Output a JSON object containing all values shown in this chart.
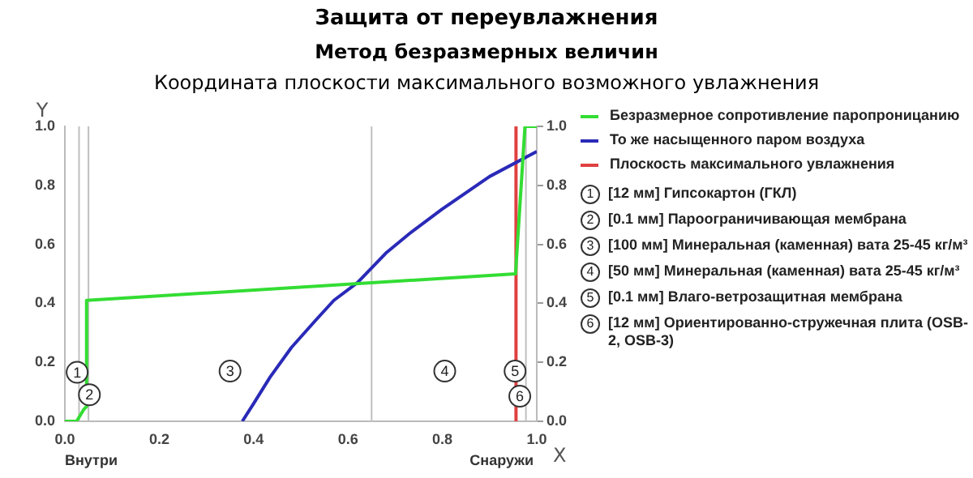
{
  "chart_data": {
    "type": "line",
    "title": "Защита от переувлажнения",
    "subtitle": "Метод безразмерных величин",
    "xlabel": "X",
    "ylabel": "Y",
    "xlim": [
      0,
      1
    ],
    "xticks": [
      {
        "value": 0,
        "label": "0.0"
      },
      0.2,
      0.4,
      0.6,
      0.8,
      {
        "value": 1,
        "label": "1.0"
      }
    ],
    "ylim": [
      0,
      1
    ],
    "yticks": [
      {
        "value": 0,
        "label": "0.0"
      },
      0.2,
      0.4,
      0.6,
      0.8,
      {
        "value": 1,
        "label": "1.0"
      }
    ],
    "y2lim": [
      0,
      1
    ],
    "y2ticks": [
      {
        "value": 0,
        "label": "0.0"
      },
      0.2,
      0.4,
      0.6,
      0.8,
      {
        "value": 1,
        "label": "1.0"
      }
    ],
    "grid": false,
    "legend": "right",
    "marker": "none",
    "series": [
      {
        "name": "Безразмерное сопротивление паропроницанию",
        "color": "#33dd33",
        "x": [
          0,
          0.025,
          0.04,
          0.046,
          0.046,
          0.955,
          0.957,
          0.975,
          1.0
        ],
        "values": [
          0,
          0,
          0.04,
          0.05,
          0.41,
          0.5,
          0.55,
          1.0,
          1.0
        ]
      },
      {
        "name": "То же насыщенного паром воздуха",
        "color": "#2a2ab8",
        "x": [
          0.376,
          0.4,
          0.435,
          0.48,
          0.53,
          0.57,
          0.62,
          0.68,
          0.733,
          0.8,
          0.9,
          1.0
        ],
        "values": [
          0,
          0.06,
          0.15,
          0.25,
          0.34,
          0.41,
          0.47,
          0.57,
          0.64,
          0.72,
          0.83,
          0.915
        ]
      },
      {
        "name": "Плоскость максимального увлажнения",
        "color": "#e04040",
        "x": [
          0.956,
          0.956
        ],
        "values": [
          0,
          1
        ]
      }
    ],
    "ref_lines": [
      {
        "axis": "x",
        "value": 0.03,
        "color": "#c0c0c0"
      },
      {
        "axis": "x",
        "value": 0.05,
        "color": "#c0c0c0"
      },
      {
        "axis": "x",
        "value": 0.65,
        "color": "#c0c0c0"
      },
      {
        "axis": "x",
        "value": 0.977,
        "color": "#c0c0c0"
      }
    ],
    "annotations": [
      {
        "text": "1",
        "x": 0.026,
        "y": 0.166
      },
      {
        "text": "2",
        "x": 0.052,
        "y": 0.09
      },
      {
        "text": "3",
        "x": 0.35,
        "y": 0.17
      },
      {
        "text": "4",
        "x": 0.805,
        "y": 0.17
      },
      {
        "text": "5",
        "x": 0.954,
        "y": 0.17
      },
      {
        "text": "6",
        "x": 0.964,
        "y": 0.085
      },
      "Координата плоскости максимального возможного увлажнения",
      "Внутри",
      "Снаружи",
      "[12 мм] Гипсокартон (ГКЛ)",
      "[0.1 мм] Пароограничивающая мембрана",
      "[100 мм] Минеральная (каменная) вата 25-45 кг/м³",
      "[50 мм] Минеральная (каменная) вата 25-45 кг/м³",
      "[0.1 мм] Влаго-ветрозащитная мембрана",
      "[12 мм] Ориентированно-стружечная плита (OSB-2, OSB-3)"
    ]
  }
}
